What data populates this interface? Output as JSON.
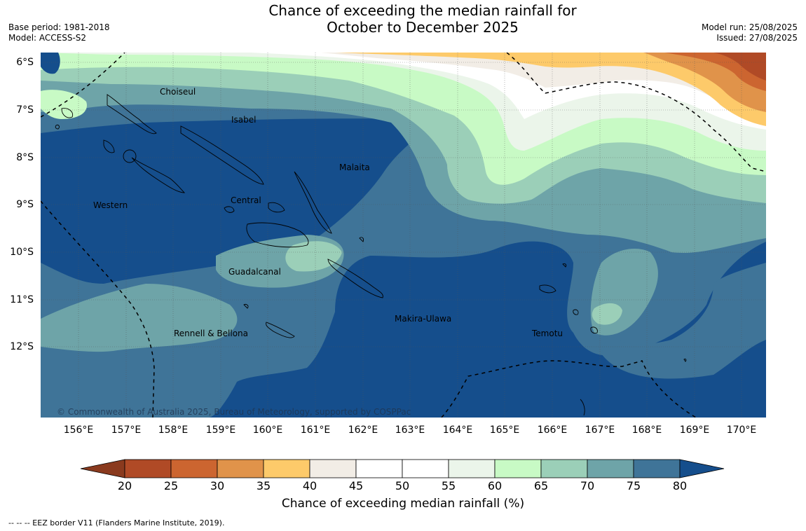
{
  "title_line1": "Chance of exceeding the median rainfall for",
  "title_line2": "October to December 2025",
  "base_period": "Base period: 1981-2018",
  "model": "Model: ACCESS-S2",
  "model_run": "Model run: 25/08/2025",
  "issued": "Issued: 27/08/2025",
  "lat_labels": [
    "6°S",
    "7°S",
    "8°S",
    "9°S",
    "10°S",
    "11°S",
    "12°S"
  ],
  "lon_labels": [
    "156°E",
    "157°E",
    "158°E",
    "159°E",
    "160°E",
    "161°E",
    "162°E",
    "163°E",
    "164°E",
    "165°E",
    "166°E",
    "167°E",
    "168°E",
    "169°E",
    "170°E"
  ],
  "region_labels": [
    "Choiseul",
    "Isabel",
    "Malaita",
    "Western",
    "Central",
    "Guadalcanal",
    "Makira-Ulawa",
    "Rennell & Bellona",
    "Temotu"
  ],
  "copyright": "© Commonwealth of Australia 2025, Bureau of Meteorology, supported by COSPPac",
  "colorbar": {
    "ticks": [
      "20",
      "25",
      "30",
      "35",
      "40",
      "45",
      "50",
      "55",
      "60",
      "65",
      "70",
      "75",
      "80"
    ],
    "colors": [
      "#8a3a1e",
      "#b04a26",
      "#cc6530",
      "#e0934a",
      "#fdca6a",
      "#f2ede6",
      "#ffffff",
      "#ffffff",
      "#ebf5ea",
      "#c8fac5",
      "#9bcfb8",
      "#6ea4a8",
      "#3f7498",
      "#154e8c"
    ],
    "title": "Chance of exceeding median rainfall (%)"
  },
  "footnote": "--  --  -- EEZ border V11 (Flanders Marine Institute, 2019).",
  "map_colors": {
    "c75": "#154e8c",
    "c70": "#3f7498",
    "c65": "#6ea4a8",
    "c60": "#9bcfb8",
    "c55": "#c8fac5",
    "c50": "#ebf5ea",
    "c45": "#ffffff",
    "c40": "#f2ede6",
    "c35": "#fdca6a",
    "c30": "#e0934a",
    "c25": "#cc6530",
    "c20": "#b04a26"
  }
}
